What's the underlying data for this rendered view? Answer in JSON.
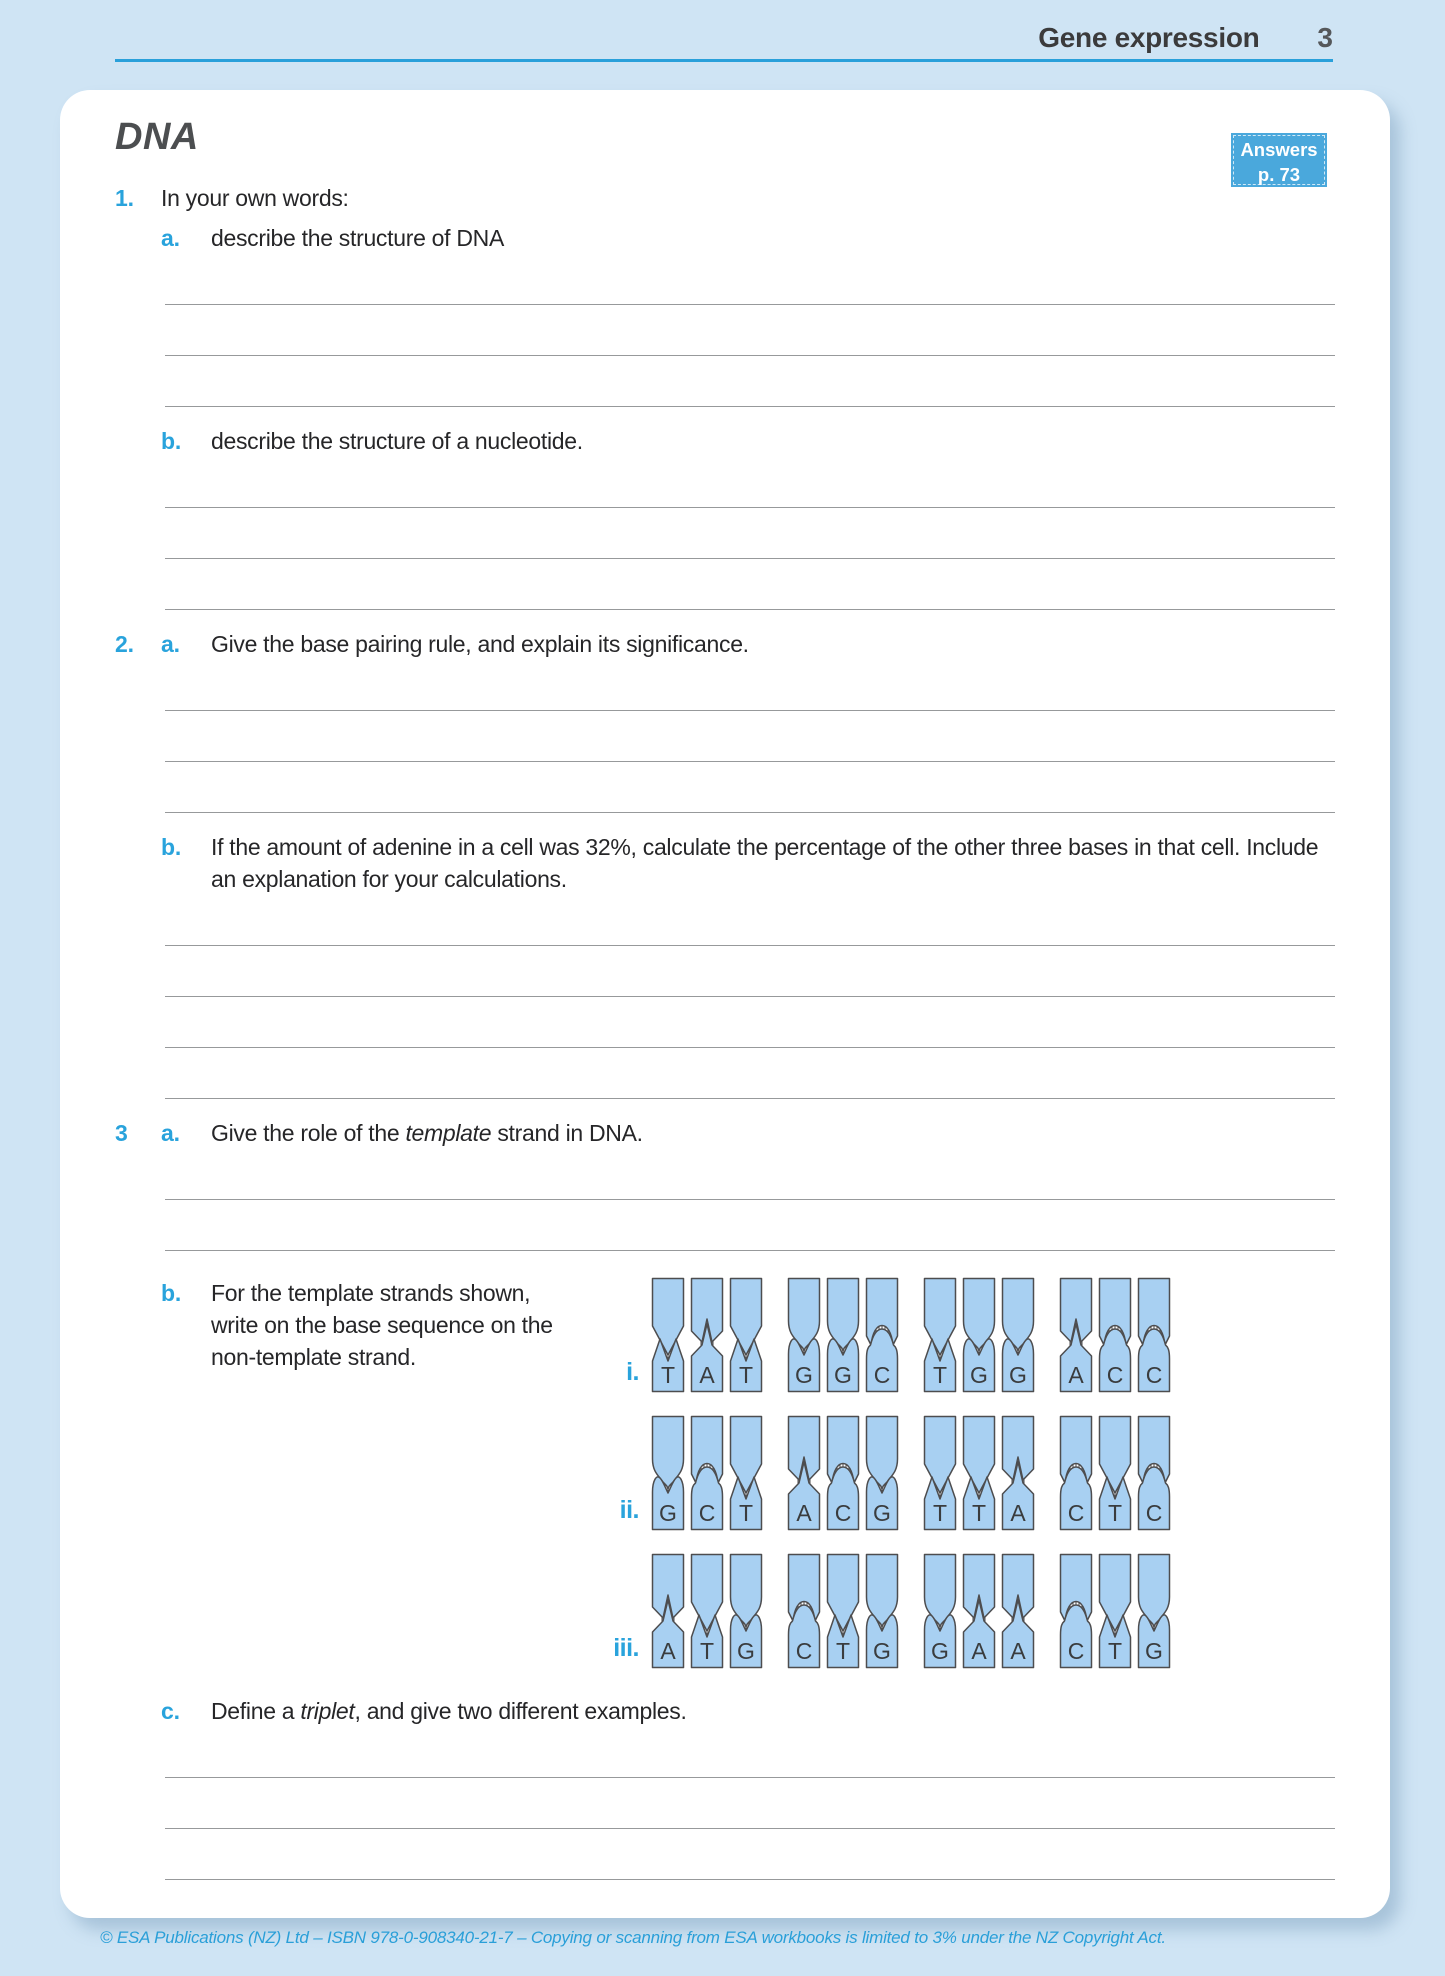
{
  "header": {
    "section_title": "Gene expression",
    "page_number": "3"
  },
  "answers_badge": {
    "label": "Answers",
    "page_ref": "p. 73"
  },
  "title": "DNA",
  "q1": {
    "number": "1.",
    "text": "In your own words:",
    "a": {
      "label": "a.",
      "text": "describe the structure of DNA",
      "answer_lines": 3
    },
    "b": {
      "label": "b.",
      "text": "describe the structure of a nucleotide.",
      "answer_lines": 3
    }
  },
  "q2": {
    "number": "2.",
    "a": {
      "label": "a.",
      "text": "Give the base pairing rule, and explain its significance.",
      "answer_lines": 3
    },
    "b": {
      "label": "b.",
      "text": "If the amount of adenine in a cell was 32%, calculate the percentage of the other three bases in that cell. Include an explanation for your calculations.",
      "answer_lines": 4
    }
  },
  "q3": {
    "number": "3",
    "a": {
      "label": "a.",
      "text_parts": [
        {
          "t": "Give the role of the "
        },
        {
          "t": "template",
          "i": true
        },
        {
          "t": " strand in DNA."
        }
      ],
      "answer_lines": 2
    },
    "b": {
      "label": "b.",
      "text": "For the template strands shown, write on the base sequence on the non-template strand.",
      "strands": [
        {
          "label": "i.",
          "bases": [
            "T",
            "A",
            "T",
            "G",
            "G",
            "C",
            "T",
            "G",
            "G",
            "A",
            "C",
            "C"
          ]
        },
        {
          "label": "ii.",
          "bases": [
            "G",
            "C",
            "T",
            "A",
            "C",
            "G",
            "T",
            "T",
            "A",
            "C",
            "T",
            "C"
          ]
        },
        {
          "label": "iii.",
          "bases": [
            "A",
            "T",
            "G",
            "C",
            "T",
            "G",
            "G",
            "A",
            "A",
            "C",
            "T",
            "G"
          ]
        }
      ]
    },
    "c": {
      "label": "c.",
      "text_parts": [
        {
          "t": "Define a "
        },
        {
          "t": "triplet",
          "i": true
        },
        {
          "t": ", and give two different examples."
        }
      ],
      "answer_lines": 3
    }
  },
  "footer": {
    "text": "© ESA Publications (NZ) Ltd  –  ISBN 978-0-908340-21-7  –  Copying or scanning from ESA workbooks is limited to 3% under the NZ Copyright Act."
  },
  "colors": {
    "accent_blue": "#29a3dc",
    "badge_blue": "#4aa8dc",
    "rule_blue": "#2aa0da",
    "page_background": "#cfe4f4",
    "nucleotide_fill": "#a8d0f2",
    "nucleotide_outline": "#4d4d4f",
    "answer_line_gray": "#97999b"
  }
}
